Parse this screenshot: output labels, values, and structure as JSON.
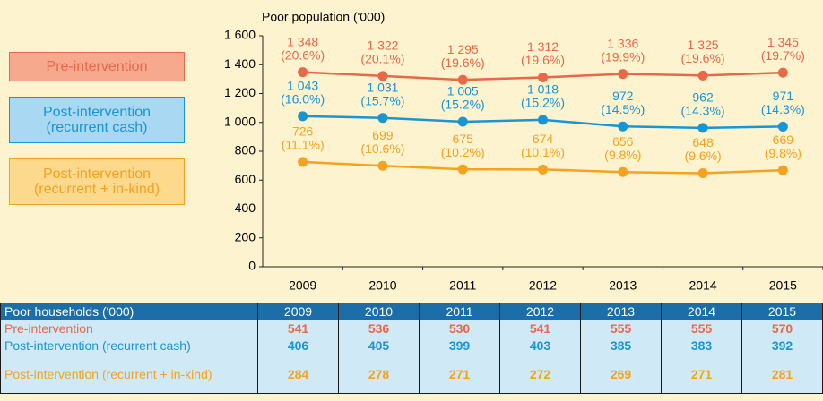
{
  "chart_data": {
    "type": "line",
    "y_axis_label": "Poor population ('000)",
    "categories": [
      "2009",
      "2010",
      "2011",
      "2012",
      "2013",
      "2014",
      "2015"
    ],
    "ylim": [
      0,
      1600
    ],
    "yticks": [
      0,
      200,
      400,
      600,
      800,
      {
        "value": 1000,
        "label": "1 000"
      },
      {
        "value": 1200,
        "label": "1 200"
      },
      {
        "value": 1400,
        "label": "1 400"
      },
      {
        "value": 1600,
        "label": "1 600"
      }
    ],
    "series": [
      {
        "name": "Pre-intervention",
        "color": "#e8684a",
        "legend_fill": "#f7a98e",
        "values": [
          1348,
          1322,
          1295,
          1312,
          1336,
          1325,
          1345
        ],
        "value_labels": [
          "1 348",
          "1 322",
          "1 295",
          "1 312",
          "1 336",
          "1 325",
          "1 345"
        ],
        "share_labels": [
          "(20.6%)",
          "(20.1%)",
          "(19.6%)",
          "(19.6%)",
          "(19.9%)",
          "(19.6%)",
          "(19.7%)"
        ]
      },
      {
        "name": "Post-intervention (recurrent cash)",
        "color": "#1a95d3",
        "legend_fill": "#a9d9f2",
        "values": [
          1043,
          1031,
          1005,
          1018,
          972,
          962,
          971
        ],
        "value_labels": [
          "1 043",
          "1 031",
          "1 005",
          "1 018",
          "972",
          "962",
          "971"
        ],
        "share_labels": [
          "(16.0%)",
          "(15.7%)",
          "(15.2%)",
          "(15.2%)",
          "(14.5%)",
          "(14.3%)",
          "(14.3%)"
        ]
      },
      {
        "name": "Post-intervention (recurrent + in-kind)",
        "color": "#f5a21f",
        "legend_fill": "#fdd98e",
        "values": [
          726,
          699,
          675,
          674,
          656,
          648,
          669
        ],
        "share_labels": [
          "(11.1%)",
          "(10.6%)",
          "(10.2%)",
          "(10.1%)",
          "(9.8%)",
          "(9.6%)",
          "(9.8%)"
        ]
      }
    ]
  },
  "table": {
    "title": "Poor households ('000)",
    "columns": [
      "2009",
      "2010",
      "2011",
      "2012",
      "2013",
      "2014",
      "2015"
    ],
    "rows": [
      {
        "label": "Pre-intervention",
        "values": [
          541,
          536,
          530,
          541,
          555,
          555,
          570
        ]
      },
      {
        "label": "Post-intervention (recurrent cash)",
        "values": [
          406,
          405,
          399,
          403,
          385,
          383,
          392
        ]
      },
      {
        "label": "Post-intervention (recurrent + in-kind)",
        "values": [
          284,
          278,
          271,
          272,
          269,
          271,
          281
        ]
      }
    ]
  }
}
